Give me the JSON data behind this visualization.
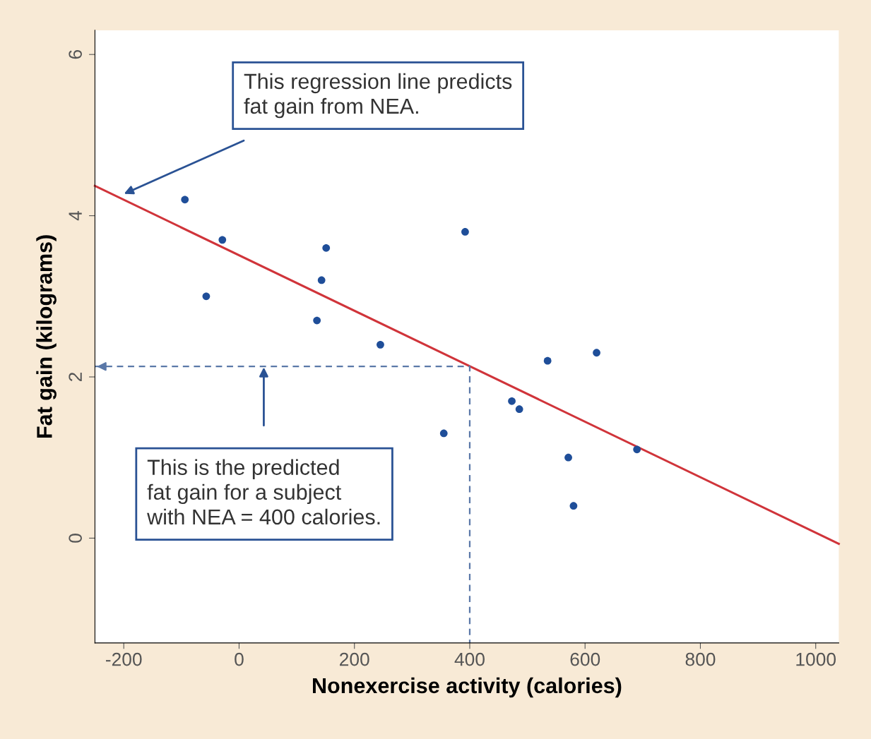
{
  "chart_data": {
    "type": "scatter",
    "xlabel": "Nonexercise activity (calories)",
    "ylabel": "Fat gain (kilograms)",
    "x": [
      -94,
      -57,
      -29,
      135,
      143,
      151,
      245,
      355,
      392,
      473,
      486,
      535,
      571,
      580,
      620,
      690
    ],
    "series": [
      {
        "color": "#1f4e99",
        "marker": "circle",
        "values": [
          4.2,
          3.0,
          3.7,
          2.7,
          3.2,
          3.6,
          2.4,
          1.3,
          3.8,
          1.7,
          1.6,
          2.2,
          1.0,
          0.4,
          2.3,
          1.1
        ]
      },
      {
        "type": "line",
        "color": "#d0343a",
        "line_style": "solid",
        "x": [
          -250,
          1040
        ],
        "values": [
          4.37,
          -0.07
        ]
      },
      {
        "type": "line",
        "color": "#5a78a8",
        "line_style": "dashed",
        "x": [
          -250,
          400,
          400
        ],
        "values": [
          2.13,
          2.13,
          -1.3
        ]
      }
    ],
    "xlim": [
      -250,
      1040
    ],
    "ylim": [
      -1.3,
      6.3
    ],
    "xticks": [
      -200,
      0,
      200,
      400,
      600,
      800,
      1000
    ],
    "yticks": [
      0,
      2,
      4,
      6
    ],
    "grid": false,
    "legend": false,
    "annotations": [
      "This regression line predicts\nfat gain from NEA.",
      "This is the predicted\nfat gain for a subject\nwith NEA = 400 calories."
    ]
  }
}
